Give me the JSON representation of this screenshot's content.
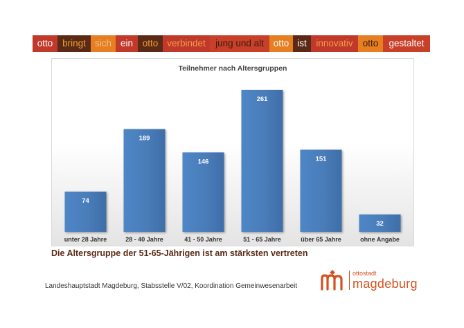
{
  "slogan": [
    {
      "text": "otto",
      "bg": "#c0392b",
      "fg": "#ffffff"
    },
    {
      "text": "bringt",
      "bg": "#5a2a16",
      "fg": "#f0a030"
    },
    {
      "text": "sich",
      "bg": "#e67e22",
      "fg": "#f6c08a"
    },
    {
      "text": "ein",
      "bg": "#c0392b",
      "fg": "#ffffff"
    },
    {
      "text": "otto",
      "bg": "#5a2a16",
      "fg": "#f0a030"
    },
    {
      "text": "verbindet",
      "bg": "#c0392b",
      "fg": "#f39c45"
    },
    {
      "text": "jung und alt",
      "bg": "#c8402a",
      "fg": "#3a1a0c"
    },
    {
      "text": "otto",
      "bg": "#e67e22",
      "fg": "#ffffff"
    },
    {
      "text": "ist",
      "bg": "#5a2a16",
      "fg": "#ffffff"
    },
    {
      "text": "innovativ",
      "bg": "#c0392b",
      "fg": "#f39c45"
    },
    {
      "text": "otto",
      "bg": "#e67e22",
      "fg": "#3a1a0c"
    },
    {
      "text": "gestaltet",
      "bg": "#c8402a",
      "fg": "#ffffff"
    }
  ],
  "chart_data": {
    "type": "bar",
    "title": "Teilnehmer nach Altersgruppen",
    "categories": [
      "unter 28 Jahre",
      "28 - 40 Jahre",
      "41 - 50 Jahre",
      "51 - 65 Jahre",
      "über 65 Jahre",
      "ohne Angabe"
    ],
    "values": [
      74,
      189,
      146,
      261,
      151,
      32
    ],
    "ylim": [
      0,
      280
    ],
    "grid": false,
    "bar_color": "#4a7ebb"
  },
  "headline": "Die Altersgruppe der 51-65-Jährigen ist am stärksten vertreten",
  "footer": "Landeshauptstadt Magdeburg, Stabsstelle V/02, Koordination Gemeinwesenarbeit",
  "logo": {
    "small": "ottostadt",
    "big": "magdeburg",
    "color": "#d4501e"
  }
}
